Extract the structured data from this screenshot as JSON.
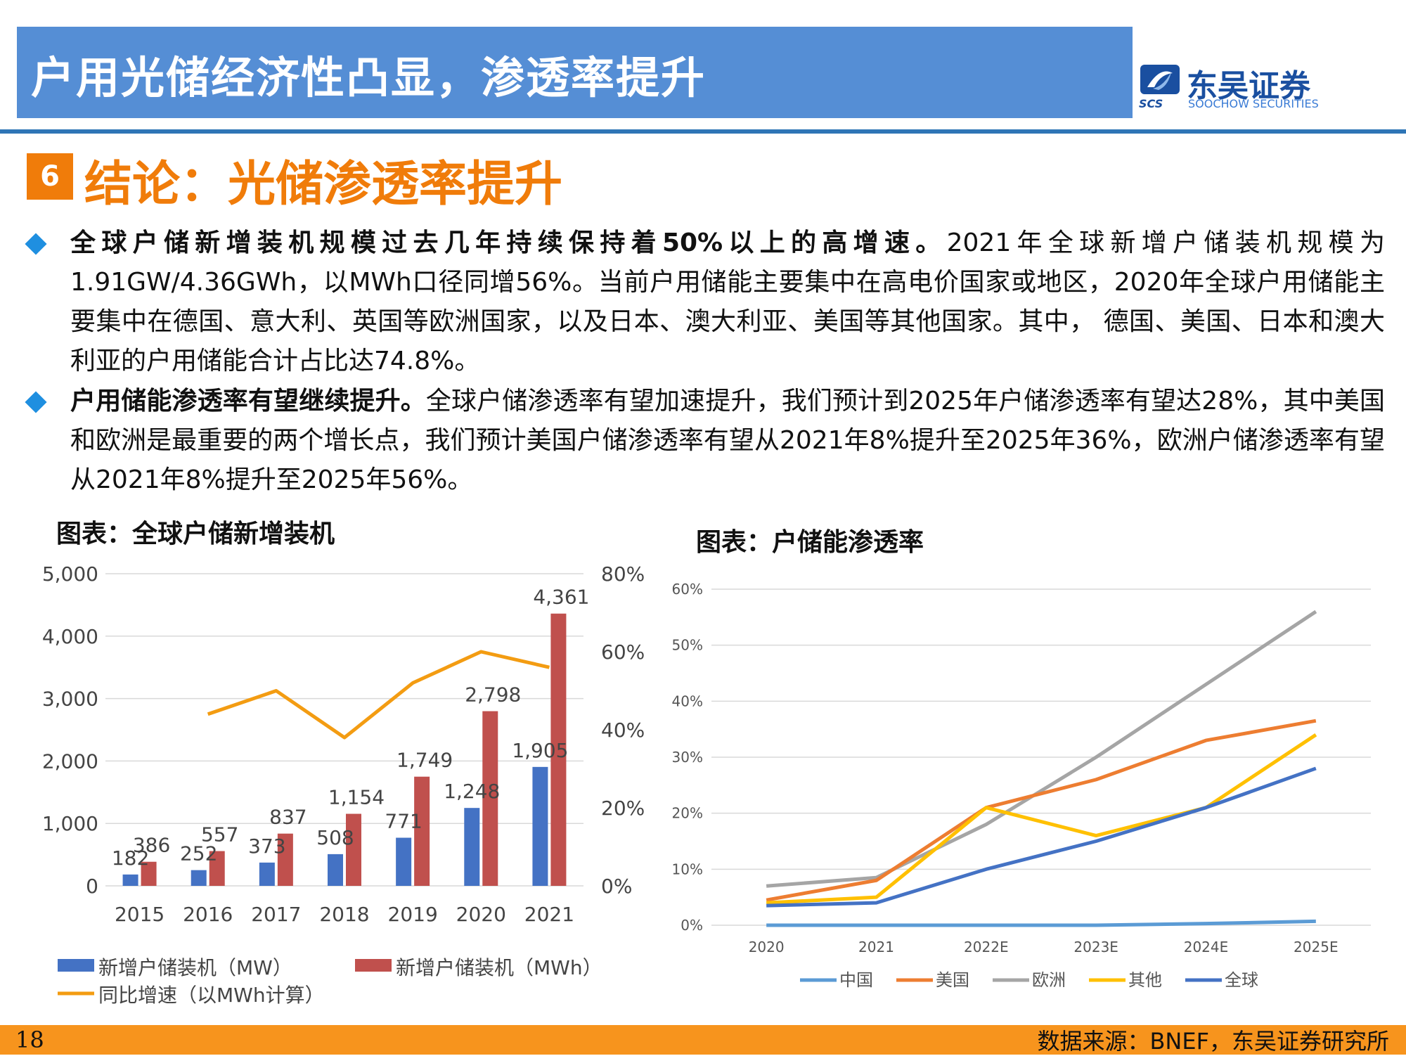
{
  "header": {
    "title": "户用光储经济性凸显，渗透率提升"
  },
  "logo": {
    "cn": "东吴证券",
    "en": "SOOCHOW SECURITIES",
    "abbr": "SCS"
  },
  "section": {
    "number": "6",
    "title": "结论：光储渗透率提升"
  },
  "bullets": [
    {
      "lead": "全球户储新增装机规模过去几年持续保持着50%以上的高增速。",
      "body": "2021年全球新增户储装机规模为1.91GW/4.36GWh，以MWh口径同增56%。当前户用储能主要集中在高电价国家或地区，2020年全球户用储能主要集中在德国、意大利、英国等欧洲国家，以及日本、澳大利亚、美国等其他国家。其中， 德国、美国、日本和澳大利亚的户用储能合计占比达74.8%。"
    },
    {
      "lead": "户用储能渗透率有望继续提升。",
      "body": "全球户储渗透率有望加速提升，我们预计到2025年户储渗透率有望达28%，其中美国和欧洲是最重要的两个增长点，我们预计美国户储渗透率有望从2021年8%提升至2025年36%，欧洲户储渗透率有望从2021年8%提升至2025年56%。"
    }
  ],
  "chart_titles": {
    "left": "图表：全球户储新增装机",
    "right": "图表：户储能渗透率"
  },
  "colors": {
    "blue": "#4472c4",
    "red": "#c0504d",
    "orange": "#f39c12",
    "header": "#558ed5",
    "accent": "#f07c0a",
    "china": "#5b9bd5",
    "usa": "#ed7d31",
    "europe": "#a5a5a5",
    "other": "#ffc000",
    "global": "#4472c4"
  },
  "chart_data": [
    {
      "type": "bar",
      "categories": [
        "2015",
        "2016",
        "2017",
        "2018",
        "2019",
        "2020",
        "2021"
      ],
      "series": [
        {
          "name": "新增户储装机（MW）",
          "values": [
            182,
            252,
            373,
            508,
            771,
            1248,
            1905
          ],
          "labels": [
            "182",
            "252",
            "373",
            "508",
            "771",
            "1,248",
            "1,905"
          ]
        },
        {
          "name": "新增户储装机（MWh）",
          "values": [
            386,
            557,
            837,
            1154,
            1749,
            2798,
            4361
          ],
          "labels": [
            "386",
            "557",
            "837",
            "1,154",
            "1,749",
            "2,798",
            "4,361"
          ]
        },
        {
          "name": "同比增速（以MWh计算）",
          "axis": "right",
          "type": "line",
          "values": [
            null,
            44,
            50,
            38,
            52,
            60,
            56
          ]
        }
      ],
      "ylim": [
        0,
        5000
      ],
      "yticks": [
        "0",
        "1,000",
        "2,000",
        "3,000",
        "4,000",
        "5,000"
      ],
      "y2lim": [
        0,
        80
      ],
      "y2ticks": [
        "0%",
        "20%",
        "40%",
        "60%",
        "80%"
      ],
      "grid": true,
      "legend": "bottom"
    },
    {
      "type": "line",
      "x": [
        "2020",
        "2021",
        "2022E",
        "2023E",
        "2024E",
        "2025E"
      ],
      "series": [
        {
          "name": "中国",
          "values": [
            0,
            0,
            0,
            0,
            0.3,
            0.7
          ]
        },
        {
          "name": "美国",
          "values": [
            4.5,
            8,
            21,
            26,
            33,
            36.5
          ]
        },
        {
          "name": "欧洲",
          "values": [
            7,
            8.5,
            18,
            30,
            43,
            56
          ]
        },
        {
          "name": "其他",
          "values": [
            4,
            5,
            21,
            16,
            21,
            34
          ]
        },
        {
          "name": "全球",
          "values": [
            3.5,
            4,
            10,
            15,
            21,
            28
          ]
        }
      ],
      "ylim": [
        0,
        60
      ],
      "yticks": [
        "0%",
        "10%",
        "20%",
        "30%",
        "40%",
        "50%",
        "60%"
      ],
      "grid": true,
      "legend": "bottom"
    }
  ],
  "footer": {
    "page": "18",
    "source": "数据来源：BNEF，东吴证券研究所"
  }
}
